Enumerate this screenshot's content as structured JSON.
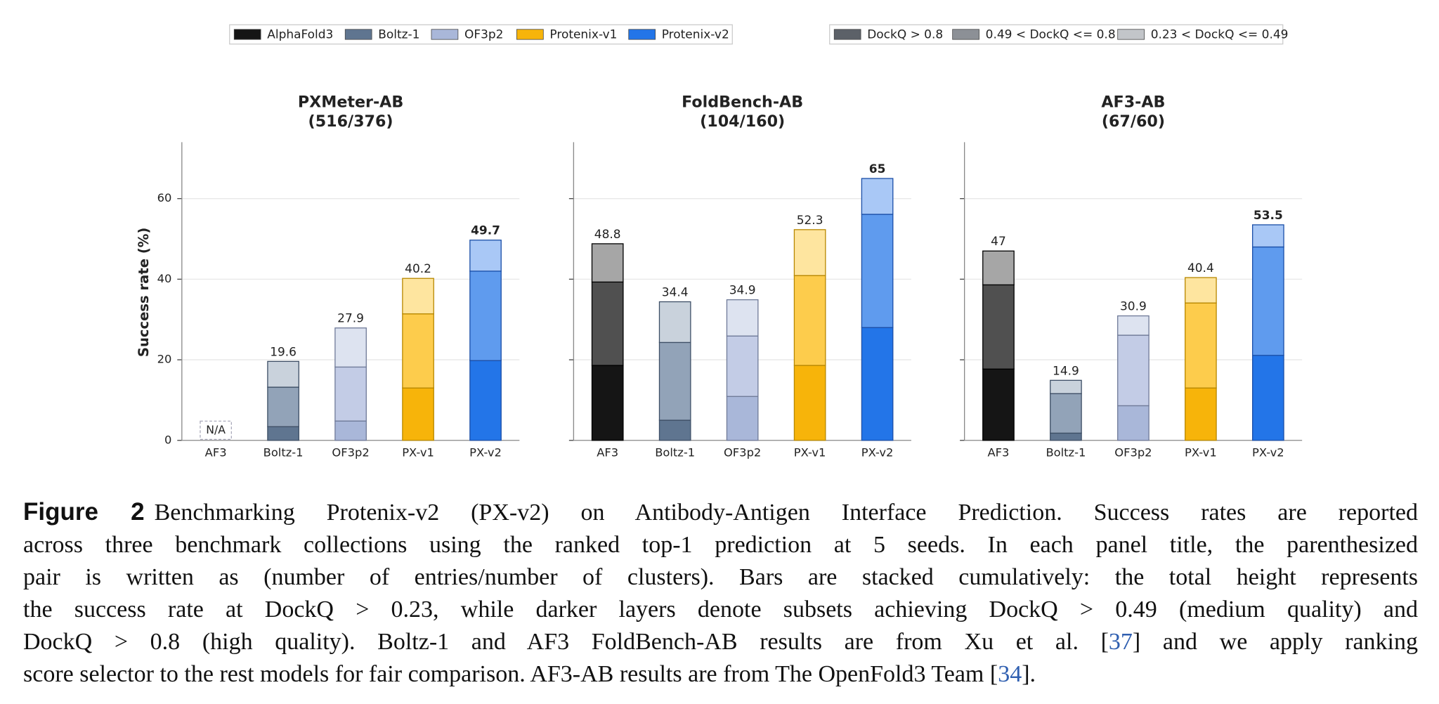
{
  "legend": {
    "models": [
      {
        "name": "AlphaFold3",
        "color": "#151515"
      },
      {
        "name": "Boltz-1",
        "color": "#5f7590"
      },
      {
        "name": "OF3p2",
        "color": "#a9b7d9"
      },
      {
        "name": "Protenix-v1",
        "color": "#f7b40a"
      },
      {
        "name": "Protenix-v2",
        "color": "#2375e8"
      }
    ],
    "quality": [
      {
        "name": "DockQ > 0.8",
        "color": "#5c6168"
      },
      {
        "name": "0.49 < DockQ <= 0.8",
        "color": "#8c9096"
      },
      {
        "name": "0.23 < DockQ <= 0.49",
        "color": "#c2c5c9"
      }
    ]
  },
  "stack_colors": [
    [
      "#151515",
      "#505050",
      "#a6a6a6"
    ],
    [
      "#5f7590",
      "#92a3b8",
      "#c9d2dc"
    ],
    [
      "#a9b7d9",
      "#c3cce6",
      "#dde3f0"
    ],
    [
      "#f7b40a",
      "#fdcc4c",
      "#fee59f"
    ],
    [
      "#2375e8",
      "#5f9bee",
      "#a9c8f6"
    ]
  ],
  "edge_colors": [
    "#000000",
    "#3e4f66",
    "#6f7a98",
    "#b88800",
    "#1b4fa8"
  ],
  "chart_data": [
    {
      "type": "bar",
      "title": "PXMeter-AB",
      "subtitle": "(516/376)",
      "ylabel": "Success rate (%)",
      "na_label": "N/A",
      "categories": [
        "AF3",
        "Boltz-1",
        "OF3p2",
        "PX-v1",
        "PX-v2"
      ],
      "series": [
        {
          "values": [
            null,
            3.4,
            4.8,
            13.0,
            19.8
          ]
        },
        {
          "values": [
            null,
            9.8,
            13.4,
            18.4,
            22.2
          ]
        },
        {
          "values": [
            null,
            6.4,
            9.7,
            8.8,
            7.7
          ]
        }
      ],
      "totals": [
        null,
        19.6,
        27.9,
        40.2,
        49.7
      ],
      "ylim": [
        0,
        74
      ],
      "yticks": [
        0,
        20,
        40,
        60
      ],
      "grid": true
    },
    {
      "type": "bar",
      "title": "FoldBench-AB",
      "subtitle": "(104/160)",
      "categories": [
        "AF3",
        "Boltz-1",
        "OF3p2",
        "PX-v1",
        "PX-v2"
      ],
      "series": [
        {
          "values": [
            18.6,
            5.0,
            10.9,
            18.6,
            28.0
          ]
        },
        {
          "values": [
            20.7,
            19.3,
            15.0,
            22.3,
            28.1
          ]
        },
        {
          "values": [
            9.5,
            10.1,
            9.0,
            11.4,
            8.9
          ]
        }
      ],
      "totals": [
        48.8,
        34.4,
        34.9,
        52.3,
        65.0
      ],
      "ylim": [
        0,
        74
      ],
      "yticks": [
        0,
        20,
        40,
        60
      ],
      "grid": true
    },
    {
      "type": "bar",
      "title": "AF3-AB",
      "subtitle": "(67/60)",
      "categories": [
        "AF3",
        "Boltz-1",
        "OF3p2",
        "PX-v1",
        "PX-v2"
      ],
      "series": [
        {
          "values": [
            17.7,
            1.8,
            8.6,
            13.0,
            21.1
          ]
        },
        {
          "values": [
            20.9,
            9.8,
            17.5,
            21.1,
            26.9
          ]
        },
        {
          "values": [
            8.4,
            3.3,
            4.8,
            6.3,
            5.5
          ]
        }
      ],
      "totals": [
        47.0,
        14.9,
        30.9,
        40.4,
        53.5
      ],
      "ylim": [
        0,
        74
      ],
      "yticks": [
        0,
        20,
        40,
        60
      ],
      "grid": true
    }
  ],
  "caption": {
    "label": "Figure 2",
    "lines": [
      [
        "Benchmarking Protenix-v2 (PX-v2) on Antibody-Antigen Interface Prediction. Success rates are reported"
      ],
      [
        "across three benchmark collections using the ranked top-1 prediction at 5 seeds. In each panel title, the parenthesized"
      ],
      [
        "pair is written as (number of entries/number of clusters). Bars are stacked cumulatively: the total height represents"
      ],
      [
        "the success rate at DockQ > 0.23, while darker layers denote subsets achieving DockQ > 0.49 (medium quality) and"
      ],
      [
        "DockQ > 0.8 (high quality). Boltz-1 and AF3 FoldBench-AB results are from Xu et al. [",
        "37",
        "] and we apply ranking"
      ],
      [
        "score selector to the rest models for fair comparison. AF3-AB results are from The OpenFold3 Team [",
        "34",
        "]."
      ]
    ]
  }
}
